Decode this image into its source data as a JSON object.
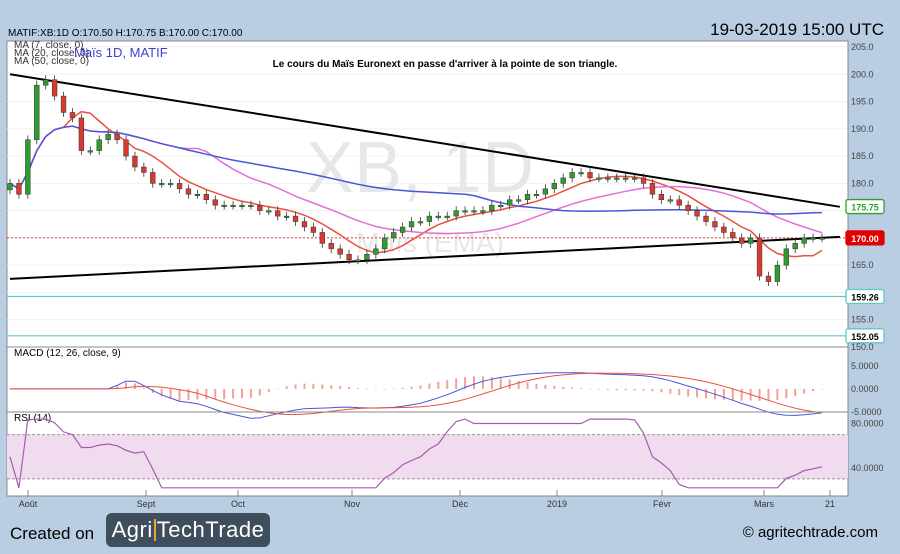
{
  "header": {
    "quote": "MATIF:XB:1D O:170.50 H:170.75 B:170.00 C:170.00",
    "datetime": "19-03-2019 15:00 UTC"
  },
  "legend": {
    "ma7": "MA (7, close, 0)",
    "ma20": "MA (20, close, 0)",
    "ma50": "MA (50, close, 0)",
    "instrument": "Maïs 1D, MATIF"
  },
  "annotation": "Le cours du Maïs Euronext en passe d'arriver à la pointe de son triangle.",
  "watermark": {
    "big": "XB, 1D",
    "small": "Maïs (EMA)"
  },
  "colors": {
    "up": "#2f9c2f",
    "down": "#d83a2f",
    "ma7": "#e8523e",
    "ma20": "#e46fd7",
    "ma50": "#4a56d6",
    "trend": "#000000",
    "hline": "#5fc8c8",
    "macdLine": "#4a56d6",
    "macdSignal": "#e8523e",
    "rsi": "#a45cb1",
    "rsiBand": "#f1dcef",
    "price_badge": "#e00000",
    "resist_badge": "#2ea02e"
  },
  "footer": {
    "created_on": "Created on",
    "logo_left": "Agri",
    "logo_right": "TechTrade",
    "copyright": "© agritechtrade.com"
  },
  "macd_label": "MACD (12, 26, close, 9)",
  "rsi_label": "RSI (14)",
  "chart_data": [
    {
      "type": "candlestick",
      "name": "Maïs 1D, MATIF",
      "x_labels": [
        "Août",
        "Sept",
        "Oct",
        "Nov",
        "Déc",
        "2019",
        "Févr",
        "Mars",
        "21"
      ],
      "ylim": [
        150,
        205
      ],
      "y_ticks": [
        150,
        155,
        160,
        165,
        170,
        175,
        180,
        185,
        190,
        195,
        200,
        205
      ],
      "price_levels": [
        {
          "value": 175.75,
          "label": "175.75",
          "kind": "resistance"
        },
        {
          "value": 170.0,
          "label": "170.00",
          "kind": "last"
        },
        {
          "value": 159.26,
          "label": "159.26",
          "kind": "support"
        },
        {
          "value": 152.05,
          "label": "152.05",
          "kind": "support"
        }
      ],
      "closes": [
        180,
        178,
        188,
        198,
        199,
        196,
        193,
        192,
        186,
        186,
        188,
        189,
        188,
        185,
        183,
        182,
        180,
        180,
        180,
        179,
        178,
        178,
        177,
        176,
        176,
        176,
        176,
        176,
        175,
        175,
        174,
        174,
        173,
        172,
        171,
        169,
        168,
        167,
        166,
        166,
        167,
        168,
        170,
        171,
        172,
        173,
        173,
        174,
        174,
        174,
        175,
        175,
        175,
        175,
        176,
        176,
        177,
        177,
        178,
        178,
        179,
        180,
        181,
        182,
        182,
        181,
        181,
        181,
        181,
        181,
        181,
        180,
        178,
        177,
        177,
        176,
        175,
        174,
        173,
        172,
        171,
        170,
        169,
        170,
        163,
        162,
        165,
        168,
        169,
        170,
        170,
        170
      ],
      "trendlines": [
        {
          "name": "upper",
          "from": [
            0,
            200
          ],
          "to": [
            93,
            175.7
          ]
        },
        {
          "name": "lower",
          "from": [
            0,
            162.5
          ],
          "to": [
            93,
            170.2
          ]
        }
      ]
    },
    {
      "type": "macd",
      "ylim": [
        -5,
        8
      ],
      "y_ticks": [
        5,
        0,
        -5
      ],
      "y_tick_labels": [
        "5.0000",
        "0.0000",
        "-5.0000"
      ]
    },
    {
      "type": "rsi",
      "ylim": [
        20,
        85
      ],
      "y_ticks": [
        80,
        40
      ],
      "y_tick_labels": [
        "80.0000",
        "40.0000"
      ],
      "band": [
        30,
        70
      ]
    }
  ]
}
